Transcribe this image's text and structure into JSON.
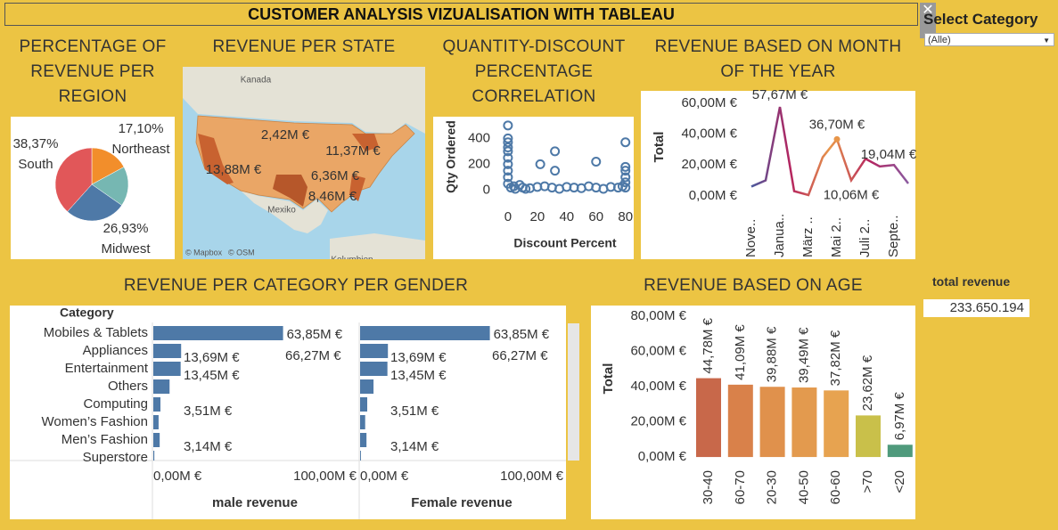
{
  "header": {
    "title": "CUSTOMER ANALYSIS VIZUALISATION WITH TABLEAU"
  },
  "filter": {
    "label": "Select Category",
    "value": "(Alle)"
  },
  "total_revenue": {
    "label": "total revenue",
    "value": "233.650.194"
  },
  "chart_data": [
    {
      "type": "pie",
      "title": "PERCENTAGE OF REVENUE PER REGION",
      "categories": [
        "Northeast",
        null,
        "Midwest",
        "South"
      ],
      "values": [
        17.1,
        17.6,
        26.93,
        38.37
      ],
      "value_labels": [
        "17,10%",
        null,
        "26,93%",
        "38,37%"
      ],
      "colors": [
        "#f28e2b",
        "#76b7b2",
        "#4e79a7",
        "#e15759"
      ]
    },
    {
      "type": "map",
      "title": "REVENUE PER STATE",
      "values": [
        2.42,
        11.37,
        13.88,
        6.36,
        8.46
      ],
      "value_labels": [
        "2,42M €",
        "11,37M €",
        "13,88M €",
        "6,36M €",
        "8,46M €"
      ],
      "places": [
        "Kanada",
        "Mexiko",
        "Kolumbien"
      ],
      "attribution": [
        "© Mapbox",
        "© OSM"
      ]
    },
    {
      "type": "scatter",
      "title": "QUANTITY-DISCOUNT PERCENTAGE CORRELATION",
      "x_label": "Discount Percent",
      "y_label": "Qty Ordered",
      "color": "#4e79a7",
      "x": [
        0,
        0,
        0,
        0,
        0,
        0,
        0,
        0,
        0,
        0,
        2,
        4,
        5,
        8,
        10,
        12,
        15,
        20,
        22,
        25,
        30,
        32,
        32,
        35,
        40,
        45,
        50,
        55,
        60,
        60,
        65,
        70,
        75,
        78,
        80,
        80,
        80,
        80,
        80,
        80
      ],
      "y": [
        500,
        400,
        370,
        330,
        300,
        250,
        200,
        150,
        100,
        50,
        20,
        30,
        10,
        40,
        20,
        10,
        15,
        25,
        200,
        30,
        20,
        150,
        300,
        10,
        25,
        20,
        15,
        30,
        20,
        220,
        10,
        25,
        20,
        30,
        370,
        180,
        150,
        100,
        60,
        20
      ],
      "xlim": [
        -6,
        82
      ],
      "xticks": [
        0,
        20,
        40,
        60,
        80
      ],
      "ylim": [
        -100,
        540
      ],
      "yticks": [
        0,
        200,
        400
      ]
    },
    {
      "type": "line",
      "title": "REVENUE BASED ON MONTH OF THE YEAR",
      "y_label": "Total",
      "categories": [
        "Nove..",
        null,
        "Janua..",
        null,
        "März ..",
        null,
        "Mai 2..",
        null,
        "Juli 2..",
        null,
        "Septe..",
        null
      ],
      "series": [
        {
          "name": "Total",
          "colors": [
            "#4b5a9e",
            "#b5245f",
            "#e8964a",
            "#b5245f",
            "#8a5aa0"
          ],
          "values": [
            6,
            10,
            57.67,
            3,
            0.5,
            25,
            36.7,
            10.06,
            24,
            19.04,
            20,
            8
          ],
          "value_labels": [
            null,
            null,
            "57,67M €",
            null,
            null,
            null,
            "36,70M €",
            "10,06M €",
            null,
            "19,04M €",
            null,
            null
          ]
        }
      ],
      "ylim": [
        -3,
        60
      ],
      "yticks": [
        {
          "value": 0,
          "label": "0,00M €"
        },
        {
          "value": 20,
          "label": "20,00M €"
        },
        {
          "value": 40,
          "label": "40,00M €"
        },
        {
          "value": 60,
          "label": "60,00M €"
        }
      ]
    },
    {
      "type": "hbar",
      "title": "REVENUE PER CATEGORY PER GENDER",
      "row_header": "Category",
      "categories": [
        "Mobiles & Tablets",
        "Appliances",
        "Entertainment",
        "Others",
        "Computing",
        "Women’s Fashion",
        "Men’s Fashion",
        "Superstore"
      ],
      "series": [
        {
          "name": "male revenue",
          "color": "#4e79a7",
          "values": [
            63.85,
            13.69,
            13.45,
            8,
            3.51,
            2.6,
            3.14,
            0.5
          ],
          "value_labels": [
            "63,85M €",
            "13,69M €",
            "13,45M €",
            null,
            "3,51M €",
            null,
            "3,14M €",
            null
          ],
          "annotation": "66,27M €"
        },
        {
          "name": "Female revenue",
          "color": "#4e79a7",
          "values": [
            63.85,
            13.69,
            13.45,
            6.6,
            3.51,
            2.5,
            3.14,
            0.4
          ],
          "value_labels": [
            "63,85M €",
            "13,69M €",
            "13,45M €",
            null,
            "3,51M €",
            null,
            "3,14M €",
            null
          ],
          "annotation": "66,27M €"
        }
      ],
      "xlim": [
        0,
        100
      ],
      "xticks": [
        {
          "value": 0,
          "label": "0,00M €"
        },
        {
          "value": 100,
          "label": "100,00M €"
        }
      ]
    },
    {
      "type": "bar",
      "title": "REVENUE BASED ON AGE",
      "y_label": "Total",
      "categories": [
        "30-40",
        "60-70",
        "20-30",
        "40-50",
        "60-60",
        ">70",
        "<20"
      ],
      "values": [
        44.78,
        41.09,
        39.88,
        39.49,
        37.82,
        23.62,
        6.97
      ],
      "value_labels": [
        "44,78M €",
        "41,09M €",
        "39,88M €",
        "39,49M €",
        "37,82M €",
        "23,62M €",
        "6,97M €"
      ],
      "colors": [
        "#c8684a",
        "#d9814a",
        "#e0914c",
        "#e39a4e",
        "#e7a350",
        "#c9c04a",
        "#4f9a7c"
      ],
      "ylim": [
        -3,
        82
      ],
      "yticks": [
        {
          "value": 0,
          "label": "0,00M €"
        },
        {
          "value": 20,
          "label": "20,00M €"
        },
        {
          "value": 40,
          "label": "40,00M €"
        },
        {
          "value": 60,
          "label": "60,00M €"
        },
        {
          "value": 80,
          "label": "80,00M €"
        }
      ]
    }
  ]
}
